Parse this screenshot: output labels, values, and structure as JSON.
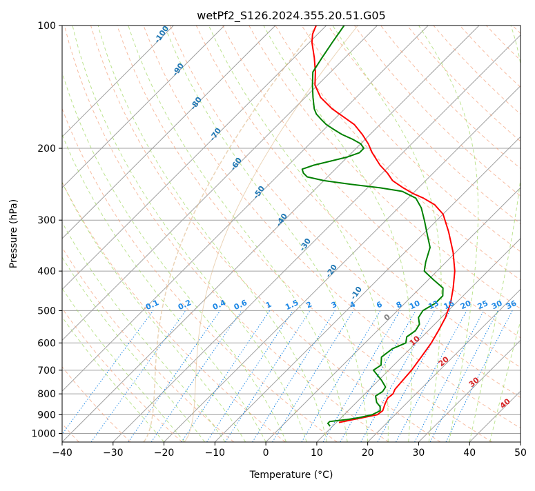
{
  "chart_data": {
    "type": "line",
    "chart_kind": "skew-T log-P diagram",
    "title": "wetPf2_S126.2024.355.20.51.G05",
    "xlabel": "Temperature (°C)",
    "ylabel": "Pressure (hPa)",
    "xlim": [
      -40,
      50
    ],
    "ylim": [
      1050,
      100
    ],
    "y_scale": "log",
    "x_ticks": [
      "−40",
      "−30",
      "−20",
      "−10",
      "0",
      "10",
      "20",
      "30",
      "40",
      "50"
    ],
    "y_ticks": [
      "100",
      "200",
      "300",
      "400",
      "500",
      "600",
      "700",
      "800",
      "900",
      "1000"
    ],
    "grid": true,
    "series": [
      {
        "color": "#ff0000",
        "pressure": [
          940,
          920,
          900,
          880,
          850,
          820,
          800,
          780,
          750,
          700,
          650,
          600,
          560,
          520,
          480,
          440,
          400,
          360,
          320,
          290,
          275,
          265,
          258,
          250,
          240,
          230,
          220,
          205,
          195,
          185,
          175,
          160,
          150,
          140,
          130,
          120,
          110,
          105,
          100
        ],
        "temperature": [
          10.5,
          13.5,
          16.5,
          16.8,
          16.0,
          15.3,
          15.5,
          15.0,
          14.8,
          14.5,
          13.8,
          13.0,
          12.0,
          10.8,
          9.0,
          6.5,
          3.5,
          -0.5,
          -5.5,
          -10.0,
          -13.5,
          -17.0,
          -20.0,
          -23.0,
          -26.5,
          -29.0,
          -32.0,
          -36.0,
          -38.5,
          -41.5,
          -45.0,
          -52.5,
          -57.0,
          -60.5,
          -63.0,
          -66.0,
          -69.5,
          -71.0,
          -72.0
        ]
      },
      {
        "color": "#008000",
        "pressure": [
          960,
          945,
          935,
          925,
          915,
          900,
          880,
          860,
          840,
          810,
          790,
          770,
          740,
          700,
          680,
          650,
          620,
          600,
          580,
          560,
          540,
          520,
          500,
          480,
          460,
          440,
          420,
          400,
          380,
          350,
          330,
          300,
          280,
          265,
          255,
          250,
          245,
          240,
          235,
          230,
          225,
          220,
          215,
          210,
          205,
          200,
          195,
          190,
          185,
          180,
          175,
          170,
          165,
          160,
          150,
          140,
          130,
          120,
          110,
          100
        ],
        "dewpoint": [
          9.5,
          8.5,
          8.5,
          11.5,
          13.5,
          15.5,
          16.3,
          15.5,
          14.0,
          12.5,
          13.0,
          12.7,
          10.5,
          7.0,
          7.5,
          6.0,
          6.5,
          8.0,
          7.0,
          7.5,
          7.0,
          5.5,
          5.0,
          6.0,
          6.0,
          4.5,
          1.0,
          -2.5,
          -4.0,
          -6.0,
          -8.5,
          -12.5,
          -15.5,
          -18.5,
          -22.5,
          -27.5,
          -34.0,
          -40.0,
          -44.0,
          -45.5,
          -46.5,
          -45.0,
          -42.5,
          -40.0,
          -38.5,
          -38.5,
          -40.0,
          -42.5,
          -45.5,
          -48.0,
          -50.5,
          -52.5,
          -54.5,
          -56.0,
          -58.5,
          -61.0,
          -63.5,
          -64.5,
          -65.5,
          -66.5
        ]
      }
    ],
    "mixing_ratio_labels": [
      "0.1",
      "0.2",
      "0.4",
      "0.6",
      "1",
      "1.5",
      "2",
      "3",
      "4",
      "6",
      "8",
      "10",
      "13",
      "16",
      "20",
      "25",
      "30",
      "36"
    ],
    "dry_adiabat_labels": [
      "-100",
      "-90",
      "-80",
      "-70",
      "-60",
      "-50",
      "-40",
      "-30",
      "-20",
      "-10"
    ],
    "moist_adiabat_labels": [
      "0",
      "10",
      "20",
      "30",
      "40"
    ],
    "colors": {
      "temperature": "#ff0000",
      "dewpoint": "#008000",
      "dry_adiabat": "#f4a582",
      "moist_adiabat": "#a6d96a",
      "mixing_ratio": "#1e88e5",
      "isotherm": "#a0a0a0",
      "isobar": "#a0a0a0",
      "dry_label": "#1f77b4",
      "mixing_label": "#1e88e5",
      "moist_label_red": "#d62728",
      "moist_label_gray": "#808080",
      "trend_curve": "#deb887"
    }
  }
}
